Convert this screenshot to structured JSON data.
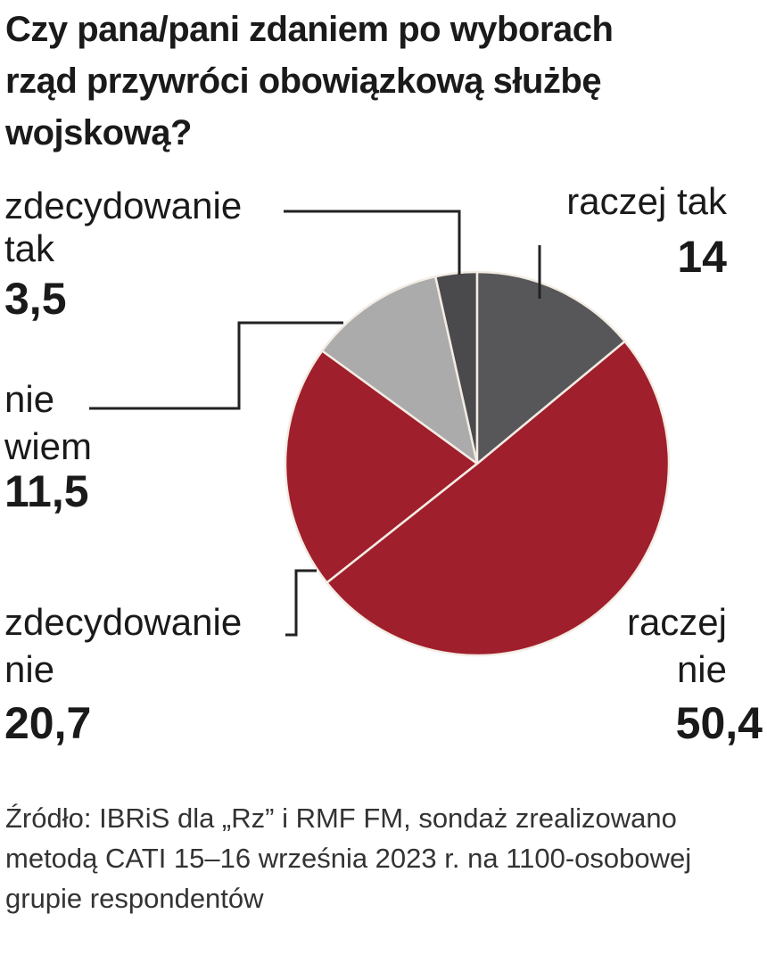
{
  "chart_data": {
    "type": "pie",
    "title": "Czy pana/pani zdaniem po wyborach rząd przywróci obowiązkową służbę wojskową?",
    "categories": [
      "raczej tak",
      "raczej nie",
      "zdecydowanie nie",
      "nie wiem",
      "zdecydowanie tak"
    ],
    "values": [
      14,
      50.4,
      20.7,
      11.5,
      3.5
    ],
    "value_labels": [
      "14",
      "50,4",
      "20,7",
      "11,5",
      "3,5"
    ],
    "colors": [
      "#57575a",
      "#a01f2c",
      "#a01f2c",
      "#ababab",
      "#4a4a4c"
    ],
    "source": "Źródło: IBRiS dla „Rz” i RMF FM, sondaż zrealizowano metodą CATI 15–16 września 2023 r. na 1100-osobowej grupie respondentów"
  }
}
